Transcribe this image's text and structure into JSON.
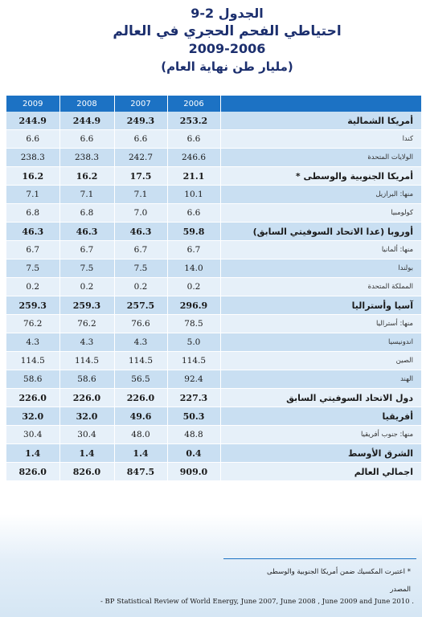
{
  "title": {
    "line1": "الجدول 2-9",
    "line2": "احتياطي الفحم الحجري في العالم",
    "line3": "2009-2006",
    "line4": "(مليار طن نهاية العام)"
  },
  "table": {
    "columns": [
      "2009",
      "2008",
      "2007",
      "2006",
      ""
    ],
    "rows": [
      {
        "label": "أمريكا الشمالية",
        "values": [
          "244.9",
          "244.9",
          "249.3",
          "253.2"
        ],
        "bold": true
      },
      {
        "label": "كندا",
        "values": [
          "6.6",
          "6.6",
          "6.6",
          "6.6"
        ],
        "bold": false
      },
      {
        "label": "الولايات المتحدة",
        "values": [
          "238.3",
          "238.3",
          "242.7",
          "246.6"
        ],
        "bold": false
      },
      {
        "label": "أمريكا الجنوبية والوسطى *",
        "values": [
          "16.2",
          "16.2",
          "17.5",
          "21.1"
        ],
        "bold": true
      },
      {
        "label": "منها: البرازيل",
        "values": [
          "7.1",
          "7.1",
          "7.1",
          "10.1"
        ],
        "bold": false
      },
      {
        "label": "كولومبيا",
        "values": [
          "6.8",
          "6.8",
          "7.0",
          "6.6"
        ],
        "bold": false
      },
      {
        "label": "أوروبا (عدا الاتحاد السوفيتي السابق)",
        "values": [
          "46.3",
          "46.3",
          "46.3",
          "59.8"
        ],
        "bold": true
      },
      {
        "label": "منها: ألمانيا",
        "values": [
          "6.7",
          "6.7",
          "6.7",
          "6.7"
        ],
        "bold": false
      },
      {
        "label": "بولندا",
        "values": [
          "7.5",
          "7.5",
          "7.5",
          "14.0"
        ],
        "bold": false
      },
      {
        "label": "المملكة المتحدة",
        "values": [
          "0.2",
          "0.2",
          "0.2",
          "0.2"
        ],
        "bold": false
      },
      {
        "label": "آسيا وأستراليا",
        "values": [
          "259.3",
          "259.3",
          "257.5",
          "296.9"
        ],
        "bold": true
      },
      {
        "label": "منها: أستراليا",
        "values": [
          "76.2",
          "76.2",
          "76.6",
          "78.5"
        ],
        "bold": false
      },
      {
        "label": "اندونيسيا",
        "values": [
          "4.3",
          "4.3",
          "4.3",
          "5.0"
        ],
        "bold": false
      },
      {
        "label": "الصين",
        "values": [
          "114.5",
          "114.5",
          "114.5",
          "114.5"
        ],
        "bold": false
      },
      {
        "label": "الهند",
        "values": [
          "58.6",
          "58.6",
          "56.5",
          "92.4"
        ],
        "bold": false
      },
      {
        "label": "دول الاتحاد السوفيتي السابق",
        "values": [
          "226.0",
          "226.0",
          "226.0",
          "227.3"
        ],
        "bold": true
      },
      {
        "label": "أفريقيا",
        "values": [
          "32.0",
          "32.0",
          "49.6",
          "50.3"
        ],
        "bold": true
      },
      {
        "label": "منها: جنوب أفريقيا",
        "values": [
          "30.4",
          "30.4",
          "48.0",
          "48.8"
        ],
        "bold": false
      },
      {
        "label": "الشرق الأوسط",
        "values": [
          "1.4",
          "1.4",
          "1.4",
          "0.4"
        ],
        "bold": true
      },
      {
        "label": "اجمالي العالم",
        "values": [
          "826.0",
          "826.0",
          "847.5",
          "909.0"
        ],
        "bold": true
      }
    ]
  },
  "footnotes": {
    "note": "* اعتبرت المكسيك ضمن أمريكا الجنوبية والوسطى",
    "source_label": "المصدر",
    "source": "- BP Statistical Review of World Energy, June 2007, June 2008 , June 2009  and June 2010 ."
  },
  "colors": {
    "header_bg": "#1c72c4",
    "row_dark": "#c9dff2",
    "row_light": "#e6f0f9",
    "title_color": "#1c2f6e"
  }
}
